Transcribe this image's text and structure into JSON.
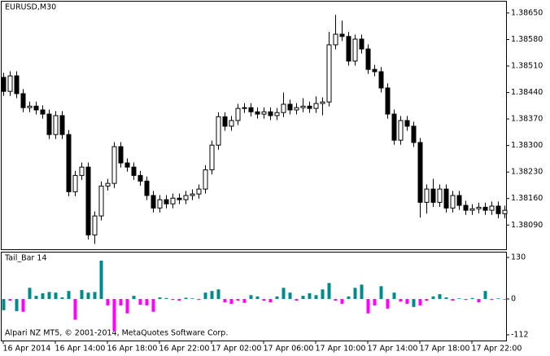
{
  "chart_data": [
    {
      "type": "candlestick",
      "title": "EURUSD,M30",
      "categories": [
        "16 Apr 2014",
        null,
        null,
        null,
        null,
        null,
        null,
        null,
        "16 Apr 14:00",
        null,
        null,
        null,
        null,
        null,
        null,
        null,
        "16 Apr 18:00",
        null,
        null,
        null,
        null,
        null,
        null,
        null,
        "16 Apr 22:00",
        null,
        null,
        null,
        null,
        null,
        null,
        null,
        "17 Apr 02:00",
        null,
        null,
        null,
        null,
        null,
        null,
        null,
        "17 Apr 06:00",
        null,
        null,
        null,
        null,
        null,
        null,
        null,
        "17 Apr 10:00",
        null,
        null,
        null,
        null,
        null,
        null,
        null,
        "17 Apr 14:00",
        null,
        null,
        null,
        null,
        null,
        null,
        null,
        "17 Apr 18:00",
        null,
        null,
        null,
        null,
        null,
        null,
        null,
        "17 Apr 22:00",
        null,
        null,
        null,
        null,
        null
      ],
      "open": [
        1.3848,
        1.38443,
        1.38484,
        1.38437,
        1.384,
        1.38404,
        1.38394,
        1.38383,
        1.38329,
        1.38379,
        1.38329,
        1.38178,
        1.38221,
        1.38243,
        1.38064,
        1.38114,
        1.38193,
        1.382,
        1.38297,
        1.38254,
        1.38243,
        1.38221,
        1.38206,
        1.38168,
        1.38135,
        1.38157,
        1.38146,
        1.38161,
        1.38157,
        1.38168,
        1.38172,
        1.38185,
        1.38236,
        1.38301,
        1.38376,
        1.38351,
        1.38366,
        1.38398,
        1.384,
        1.38389,
        1.38383,
        1.38389,
        1.38379,
        1.38387,
        1.38409,
        1.38394,
        1.384,
        1.38404,
        1.38398,
        1.38411,
        1.38415,
        1.38566,
        1.38594,
        1.38588,
        1.38523,
        1.38581,
        1.38555,
        1.38501,
        1.38495,
        1.38452,
        1.38383,
        1.38314,
        1.38366,
        1.38351,
        1.38308,
        1.3815,
        1.38185,
        1.3815,
        1.38185,
        1.38135,
        1.38168,
        1.38142,
        1.38129,
        1.38133,
        1.38137,
        1.38129,
        1.3814,
        1.3812
      ],
      "high": [
        1.38492,
        1.38496,
        1.38496,
        1.38449,
        1.38416,
        1.38416,
        1.38406,
        1.38395,
        1.38391,
        1.38391,
        1.38341,
        1.38233,
        1.38255,
        1.38255,
        1.38126,
        1.38205,
        1.38212,
        1.38309,
        1.38309,
        1.38266,
        1.38255,
        1.38233,
        1.38218,
        1.3818,
        1.38169,
        1.38169,
        1.38173,
        1.38173,
        1.3818,
        1.38184,
        1.38197,
        1.38248,
        1.38313,
        1.38388,
        1.38388,
        1.38378,
        1.3841,
        1.38412,
        1.38412,
        1.38401,
        1.38401,
        1.38401,
        1.38399,
        1.3844,
        1.38421,
        1.38412,
        1.38425,
        1.38416,
        1.3843,
        1.38427,
        1.386,
        1.38645,
        1.3863,
        1.386,
        1.38593,
        1.38593,
        1.38567,
        1.38513,
        1.38507,
        1.38464,
        1.38395,
        1.38378,
        1.38378,
        1.38363,
        1.3832,
        1.38197,
        1.38212,
        1.38197,
        1.38197,
        1.3818,
        1.3818,
        1.38154,
        1.38145,
        1.38149,
        1.38149,
        1.38152,
        1.38152,
        1.38141
      ],
      "low": [
        1.38431,
        1.38431,
        1.38425,
        1.38388,
        1.38388,
        1.38382,
        1.38371,
        1.38317,
        1.38317,
        1.38317,
        1.38166,
        1.38166,
        1.38209,
        1.38052,
        1.3804,
        1.38102,
        1.38181,
        1.38188,
        1.38242,
        1.38231,
        1.38209,
        1.38194,
        1.38156,
        1.38123,
        1.38123,
        1.38134,
        1.38134,
        1.38145,
        1.38145,
        1.38156,
        1.3816,
        1.38173,
        1.38224,
        1.38289,
        1.38339,
        1.38339,
        1.38354,
        1.38386,
        1.38377,
        1.38371,
        1.38371,
        1.38367,
        1.38367,
        1.38375,
        1.38382,
        1.38382,
        1.38388,
        1.38386,
        1.38386,
        1.3838,
        1.38403,
        1.38554,
        1.38576,
        1.38511,
        1.38511,
        1.38543,
        1.38489,
        1.38483,
        1.3844,
        1.38371,
        1.38302,
        1.38302,
        1.38339,
        1.38296,
        1.3811,
        1.3812,
        1.38138,
        1.38138,
        1.38123,
        1.38123,
        1.3813,
        1.38117,
        1.38117,
        1.38121,
        1.38117,
        1.38117,
        1.38108,
        1.38108
      ],
      "close": [
        1.38443,
        1.38484,
        1.38437,
        1.384,
        1.38404,
        1.38394,
        1.38383,
        1.38329,
        1.38379,
        1.38329,
        1.38178,
        1.38221,
        1.38243,
        1.38064,
        1.38114,
        1.38193,
        1.382,
        1.38297,
        1.38254,
        1.38243,
        1.38221,
        1.38206,
        1.38168,
        1.38135,
        1.38157,
        1.38146,
        1.38161,
        1.38157,
        1.38168,
        1.38172,
        1.38185,
        1.38236,
        1.38301,
        1.38376,
        1.38351,
        1.38366,
        1.38398,
        1.384,
        1.38389,
        1.38383,
        1.38389,
        1.38379,
        1.38387,
        1.38409,
        1.38394,
        1.384,
        1.38404,
        1.38398,
        1.38411,
        1.38415,
        1.38566,
        1.38594,
        1.38588,
        1.38523,
        1.38581,
        1.38555,
        1.38501,
        1.38495,
        1.38452,
        1.38383,
        1.38314,
        1.38366,
        1.38351,
        1.38308,
        1.3815,
        1.38185,
        1.3815,
        1.38185,
        1.38135,
        1.38168,
        1.38142,
        1.38129,
        1.38133,
        1.38137,
        1.38129,
        1.3814,
        1.3812,
        1.38129
      ],
      "up_color": "#ffffff",
      "down_color": "#000000",
      "ylim": [
        1.38026,
        1.3868
      ],
      "yticks": [
        {
          "value": 1.3865,
          "label": "1.38650"
        },
        {
          "value": 1.3858,
          "label": "1.38580"
        },
        {
          "value": 1.3851,
          "label": "1.38510"
        },
        {
          "value": 1.3844,
          "label": "1.38440"
        },
        {
          "value": 1.3837,
          "label": "1.38370"
        },
        {
          "value": 1.383,
          "label": "1.38300"
        },
        {
          "value": 1.3823,
          "label": "1.38230"
        },
        {
          "value": 1.3816,
          "label": "1.38160"
        },
        {
          "value": 1.3809,
          "label": "1.38090"
        }
      ]
    },
    {
      "type": "bar",
      "title": "Tail_Bar 14",
      "annotation": "Alpari NZ MT5, © 2001-2014, MetaQuotes Software Corp.",
      "series": [
        {
          "color": "#008b8b",
          "values": [
            -35,
            null,
            -38,
            null,
            35,
            10,
            18,
            22,
            20,
            5,
            25,
            null,
            28,
            20,
            22,
            120,
            null,
            null,
            null,
            null,
            10,
            null,
            null,
            null,
            5,
            3,
            null,
            null,
            4,
            2,
            null,
            20,
            25,
            30,
            null,
            null,
            null,
            null,
            12,
            8,
            null,
            null,
            8,
            35,
            20,
            null,
            10,
            18,
            12,
            30,
            50,
            null,
            null,
            8,
            35,
            45,
            null,
            null,
            40,
            null,
            20,
            null,
            null,
            -25,
            null,
            null,
            8,
            15,
            5,
            null,
            2,
            null,
            3,
            null,
            25,
            null,
            2,
            null
          ]
        },
        {
          "color": "#ff00ff",
          "values": [
            null,
            -5,
            null,
            -40,
            null,
            null,
            null,
            null,
            null,
            null,
            null,
            -65,
            null,
            null,
            null,
            null,
            -20,
            -100,
            -20,
            -45,
            null,
            -18,
            -20,
            -40,
            null,
            null,
            -3,
            -5,
            null,
            null,
            -3,
            null,
            null,
            null,
            -10,
            -15,
            -5,
            -12,
            null,
            null,
            -5,
            -10,
            null,
            null,
            null,
            -5,
            null,
            null,
            null,
            null,
            null,
            -5,
            -15,
            null,
            null,
            null,
            -45,
            -20,
            null,
            -30,
            null,
            -8,
            -15,
            null,
            -20,
            -5,
            null,
            null,
            null,
            -5,
            null,
            -3,
            null,
            -10,
            null,
            -3,
            null,
            -2
          ]
        }
      ],
      "ylim": [
        -112,
        130
      ],
      "yticks": [
        130,
        0,
        -112
      ]
    }
  ]
}
